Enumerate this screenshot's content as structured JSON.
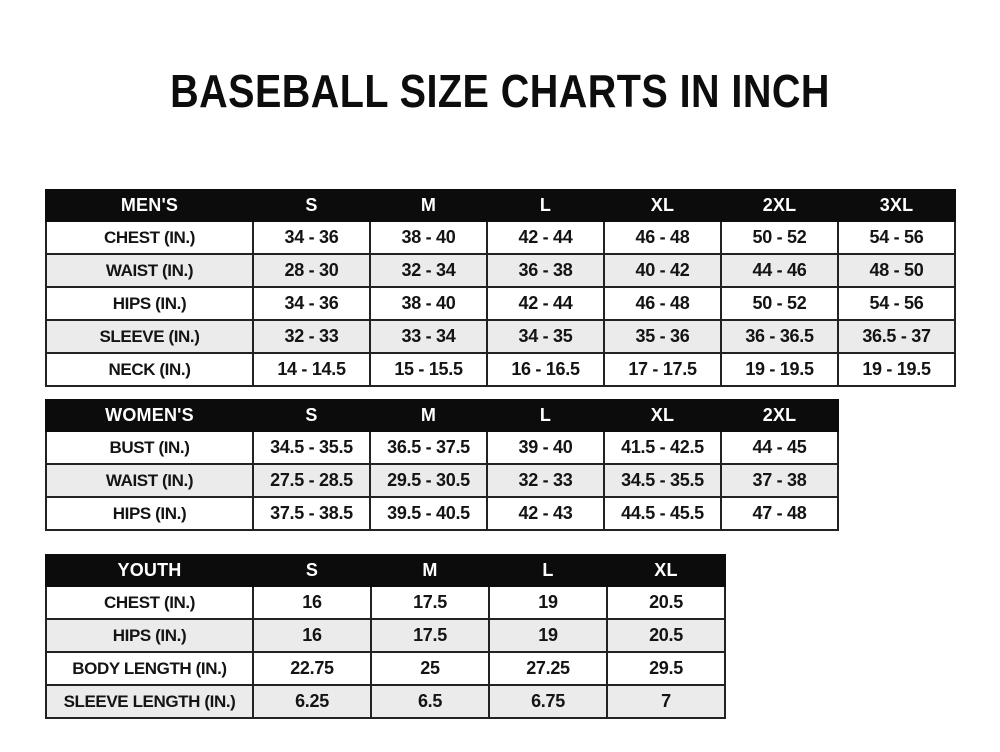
{
  "title": "BASEBALL SIZE CHARTS IN INCH",
  "colors": {
    "page_bg": "#ffffff",
    "title_color": "#0d0d0d",
    "table_header_bg": "#0c0c0c",
    "table_header_text": "#ffffff",
    "row_stripe": "#ebebeb",
    "table_border": "#222222",
    "cell_text": "#141414"
  },
  "tables": {
    "mens": {
      "name_header": "MEN'S",
      "size_headers": [
        "S",
        "M",
        "L",
        "XL",
        "2XL",
        "3XL"
      ],
      "rows": [
        {
          "label": "CHEST (IN.)",
          "values": [
            "34 - 36",
            "38 - 40",
            "42 - 44",
            "46 - 48",
            "50 - 52",
            "54 - 56"
          ]
        },
        {
          "label": "WAIST (IN.)",
          "values": [
            "28 - 30",
            "32 - 34",
            "36 - 38",
            "40 - 42",
            "44 - 46",
            "48 - 50"
          ]
        },
        {
          "label": "HIPS (IN.)",
          "values": [
            "34 - 36",
            "38 - 40",
            "42 - 44",
            "46 - 48",
            "50 - 52",
            "54 - 56"
          ]
        },
        {
          "label": "SLEEVE (IN.)",
          "values": [
            "32 - 33",
            "33 - 34",
            "34 - 35",
            "35 - 36",
            "36 - 36.5",
            "36.5 - 37"
          ]
        },
        {
          "label": "NECK (IN.)",
          "values": [
            "14 - 14.5",
            "15 - 15.5",
            "16 - 16.5",
            "17 - 17.5",
            "19 - 19.5",
            "19 - 19.5"
          ]
        }
      ]
    },
    "womens": {
      "name_header": "WOMEN'S",
      "size_headers": [
        "S",
        "M",
        "L",
        "XL",
        "2XL"
      ],
      "rows": [
        {
          "label": "BUST (IN.)",
          "values": [
            "34.5 - 35.5",
            "36.5 - 37.5",
            "39 - 40",
            "41.5 - 42.5",
            "44 - 45"
          ]
        },
        {
          "label": "WAIST (IN.)",
          "values": [
            "27.5 - 28.5",
            "29.5 - 30.5",
            "32 - 33",
            "34.5 - 35.5",
            "37 - 38"
          ]
        },
        {
          "label": "HIPS (IN.)",
          "values": [
            "37.5 - 38.5",
            "39.5 - 40.5",
            "42 - 43",
            "44.5 - 45.5",
            "47 - 48"
          ]
        }
      ]
    },
    "youth": {
      "name_header": "YOUTH",
      "size_headers": [
        "S",
        "M",
        "L",
        "XL"
      ],
      "rows": [
        {
          "label": "CHEST (IN.)",
          "values": [
            "16",
            "17.5",
            "19",
            "20.5"
          ]
        },
        {
          "label": "HIPS (IN.)",
          "values": [
            "16",
            "17.5",
            "19",
            "20.5"
          ]
        },
        {
          "label": "BODY LENGTH (IN.)",
          "values": [
            "22.75",
            "25",
            "27.25",
            "29.5"
          ]
        },
        {
          "label": "SLEEVE LENGTH (IN.)",
          "values": [
            "6.25",
            "6.5",
            "6.75",
            "7"
          ]
        }
      ]
    }
  }
}
